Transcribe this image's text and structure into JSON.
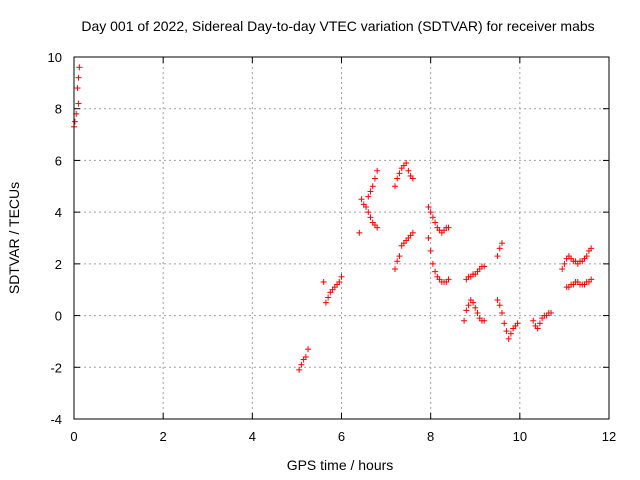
{
  "chart_data": {
    "type": "scatter",
    "title": "Day 001 of 2022, Sidereal Day-to-day VTEC variation (SDTVAR) for receiver mabs",
    "xlabel": "GPS time / hours",
    "ylabel": "SDTVAR / TECUs",
    "xlim": [
      0,
      12
    ],
    "ylim": [
      -4,
      10
    ],
    "xticks": [
      "0",
      "2",
      "4",
      "6",
      "8",
      "10",
      "12"
    ],
    "yticks": [
      "-4",
      "-2",
      "0",
      "2",
      "4",
      "6",
      "8",
      "10"
    ],
    "grid": true,
    "marker": "plus",
    "color": "#ff0000",
    "segments": [
      {
        "x": [
          0.0,
          0.02,
          0.05,
          0.1
        ],
        "y": [
          7.3,
          7.5,
          7.8,
          8.2
        ]
      },
      {
        "x": [
          0.08,
          0.1,
          0.12
        ],
        "y": [
          8.8,
          9.2,
          9.6
        ]
      },
      {
        "x": [
          5.05,
          5.1,
          5.15,
          5.2,
          5.25
        ],
        "y": [
          -2.1,
          -1.9,
          -1.7,
          -1.6,
          -1.3
        ]
      },
      {
        "x": [
          5.6,
          5.65,
          5.7,
          5.75,
          5.8,
          5.85,
          5.9,
          5.95,
          6.0
        ],
        "y": [
          1.3,
          0.5,
          0.7,
          0.9,
          1.0,
          1.1,
          1.2,
          1.3,
          1.5
        ]
      },
      {
        "x": [
          6.4,
          6.45,
          6.5,
          6.55,
          6.6,
          6.65,
          6.7,
          6.75,
          6.8
        ],
        "y": [
          3.2,
          4.5,
          4.3,
          4.2,
          4.0,
          3.8,
          3.6,
          3.5,
          3.4
        ]
      },
      {
        "x": [
          6.6,
          6.65,
          6.7,
          6.75,
          6.8
        ],
        "y": [
          4.6,
          4.8,
          5.0,
          5.3,
          5.6
        ]
      },
      {
        "x": [
          7.2,
          7.25,
          7.3,
          7.35,
          7.4,
          7.45,
          7.5,
          7.55,
          7.6
        ],
        "y": [
          5.0,
          5.3,
          5.5,
          5.7,
          5.8,
          5.9,
          5.6,
          5.4,
          5.3
        ]
      },
      {
        "x": [
          7.2,
          7.25,
          7.3,
          7.35,
          7.4,
          7.45,
          7.5,
          7.55,
          7.6
        ],
        "y": [
          1.8,
          2.1,
          2.3,
          2.7,
          2.8,
          2.9,
          3.0,
          3.1,
          3.2
        ]
      },
      {
        "x": [
          7.95,
          8.0,
          8.05,
          8.1,
          8.15,
          8.2,
          8.25,
          8.3,
          8.35,
          8.4
        ],
        "y": [
          4.2,
          4.0,
          3.8,
          3.6,
          3.4,
          3.3,
          3.2,
          3.3,
          3.4,
          3.4
        ]
      },
      {
        "x": [
          7.95,
          8.0,
          8.05,
          8.1,
          8.15,
          8.2,
          8.25,
          8.3,
          8.35,
          8.4
        ],
        "y": [
          3.0,
          2.5,
          2.0,
          1.7,
          1.5,
          1.4,
          1.3,
          1.3,
          1.3,
          1.4
        ]
      },
      {
        "x": [
          8.75,
          8.8,
          8.85,
          8.9,
          8.95,
          9.0,
          9.05,
          9.1,
          9.15,
          9.2
        ],
        "y": [
          -0.2,
          0.2,
          0.4,
          0.6,
          0.5,
          0.3,
          0.1,
          -0.1,
          -0.2,
          -0.2
        ]
      },
      {
        "x": [
          8.8,
          8.85,
          8.9,
          8.95,
          9.0,
          9.05,
          9.1,
          9.15,
          9.2
        ],
        "y": [
          1.4,
          1.5,
          1.5,
          1.6,
          1.6,
          1.7,
          1.8,
          1.9,
          1.9
        ]
      },
      {
        "x": [
          9.5,
          9.55,
          9.6
        ],
        "y": [
          2.3,
          2.6,
          2.8
        ]
      },
      {
        "x": [
          9.5,
          9.55,
          9.6,
          9.65,
          9.7,
          9.75,
          9.8,
          9.85,
          9.9,
          9.95
        ],
        "y": [
          0.6,
          0.4,
          0.1,
          -0.3,
          -0.6,
          -0.9,
          -0.7,
          -0.5,
          -0.4,
          -0.3
        ]
      },
      {
        "x": [
          10.3,
          10.35,
          10.4,
          10.45,
          10.5,
          10.55,
          10.6,
          10.65,
          10.7
        ],
        "y": [
          -0.2,
          -0.4,
          -0.5,
          -0.3,
          -0.1,
          0.0,
          0.0,
          0.1,
          0.1
        ]
      },
      {
        "x": [
          10.95,
          11.0,
          11.05,
          11.1,
          11.15,
          11.2,
          11.25,
          11.3,
          11.35,
          11.4,
          11.45,
          11.5,
          11.55,
          11.6
        ],
        "y": [
          1.8,
          2.0,
          2.2,
          2.3,
          2.2,
          2.1,
          2.1,
          2.0,
          2.1,
          2.1,
          2.2,
          2.3,
          2.5,
          2.6
        ]
      },
      {
        "x": [
          11.05,
          11.1,
          11.15,
          11.2,
          11.25,
          11.3,
          11.35,
          11.4,
          11.45,
          11.5,
          11.55,
          11.6
        ],
        "y": [
          1.1,
          1.1,
          1.2,
          1.2,
          1.3,
          1.3,
          1.2,
          1.2,
          1.2,
          1.3,
          1.3,
          1.4
        ]
      }
    ]
  }
}
